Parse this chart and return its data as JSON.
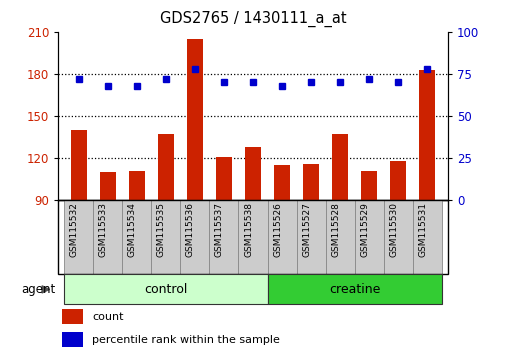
{
  "title": "GDS2765 / 1430111_a_at",
  "categories": [
    "GSM115532",
    "GSM115533",
    "GSM115534",
    "GSM115535",
    "GSM115536",
    "GSM115537",
    "GSM115538",
    "GSM115526",
    "GSM115527",
    "GSM115528",
    "GSM115529",
    "GSM115530",
    "GSM115531"
  ],
  "bar_values": [
    140,
    110,
    111,
    137,
    205,
    121,
    128,
    115,
    116,
    137,
    111,
    118,
    183
  ],
  "dot_values": [
    72,
    68,
    68,
    72,
    78,
    70,
    70,
    68,
    70,
    70,
    72,
    70,
    78
  ],
  "bar_color": "#cc2200",
  "dot_color": "#0000cc",
  "ymin": 90,
  "ymax": 210,
  "yticks": [
    90,
    120,
    150,
    180,
    210
  ],
  "y2min": 0,
  "y2max": 100,
  "y2ticks": [
    0,
    25,
    50,
    75,
    100
  ],
  "groups": [
    {
      "label": "control",
      "start": 0,
      "end": 7,
      "color": "#ccffcc"
    },
    {
      "label": "creatine",
      "start": 7,
      "end": 13,
      "color": "#33cc33"
    }
  ],
  "agent_label": "agent",
  "legend_count_label": "count",
  "legend_pct_label": "percentile rank within the sample",
  "tick_area_color": "#cccccc",
  "tick_border_color": "#888888",
  "group_border_color": "#333333"
}
